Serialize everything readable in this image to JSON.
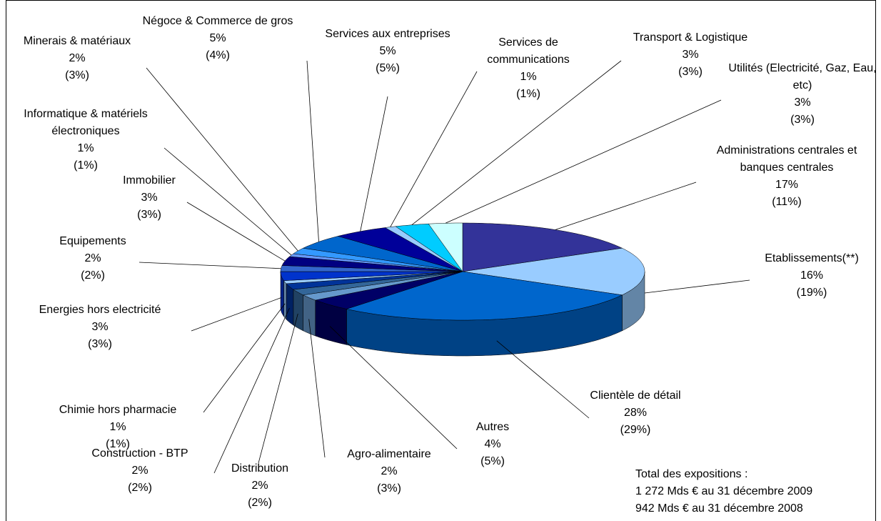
{
  "chart_data": {
    "type": "pie3d",
    "categories": [
      "Administrations centrales et banques centrales",
      "Etablissements(**)",
      "Clientèle de détail",
      "Autres",
      "Agro-alimentaire",
      "Distribution",
      "Construction - BTP",
      "Chimie hors pharmacie",
      "Energies hors electricité",
      "Equipements",
      "Immobilier",
      "Informatique & matériels électroniques",
      "Minerais & matériaux",
      "Négoce & Commerce de gros",
      "Services aux entreprises",
      "Services de communications",
      "Transport & Logistique",
      "Utilités (Electricité, Gaz, Eau, etc)"
    ],
    "values": [
      17,
      16,
      28,
      4,
      2,
      2,
      2,
      1,
      3,
      2,
      3,
      1,
      2,
      5,
      5,
      1,
      3,
      3
    ],
    "value_labels": [
      "17%",
      "16%",
      "28%",
      "4%",
      "2%",
      "2%",
      "2%",
      "1%",
      "3%",
      "2%",
      "3%",
      "1%",
      "2%",
      "5%",
      "5%",
      "1%",
      "3%",
      "3%"
    ],
    "prior_labels": [
      "(11%)",
      "(19%)",
      "(29%)",
      "(5%)",
      "(3%)",
      "(2%)",
      "(2%)",
      "(1%)",
      "(3%)",
      "(2%)",
      "(3%)",
      "(1%)",
      "(3%)",
      "(4%)",
      "(5%)",
      "(1%)",
      "(3%)",
      "(3%)"
    ],
    "colors": [
      "#333399",
      "#99ccff",
      "#0066cc",
      "#000066",
      "#6699cc",
      "#336699",
      "#003399",
      "#99ccff",
      "#0033cc",
      "#3366cc",
      "#000080",
      "#6699ff",
      "#3399ff",
      "#0066cc",
      "#000099",
      "#99ccff",
      "#00ccff",
      "#ccffff"
    ],
    "notes": [
      "Total des expositions :",
      "1 272 Mds € au 31 décembre 2009",
      "942 Mds € au 31 décembre 2008"
    ]
  }
}
